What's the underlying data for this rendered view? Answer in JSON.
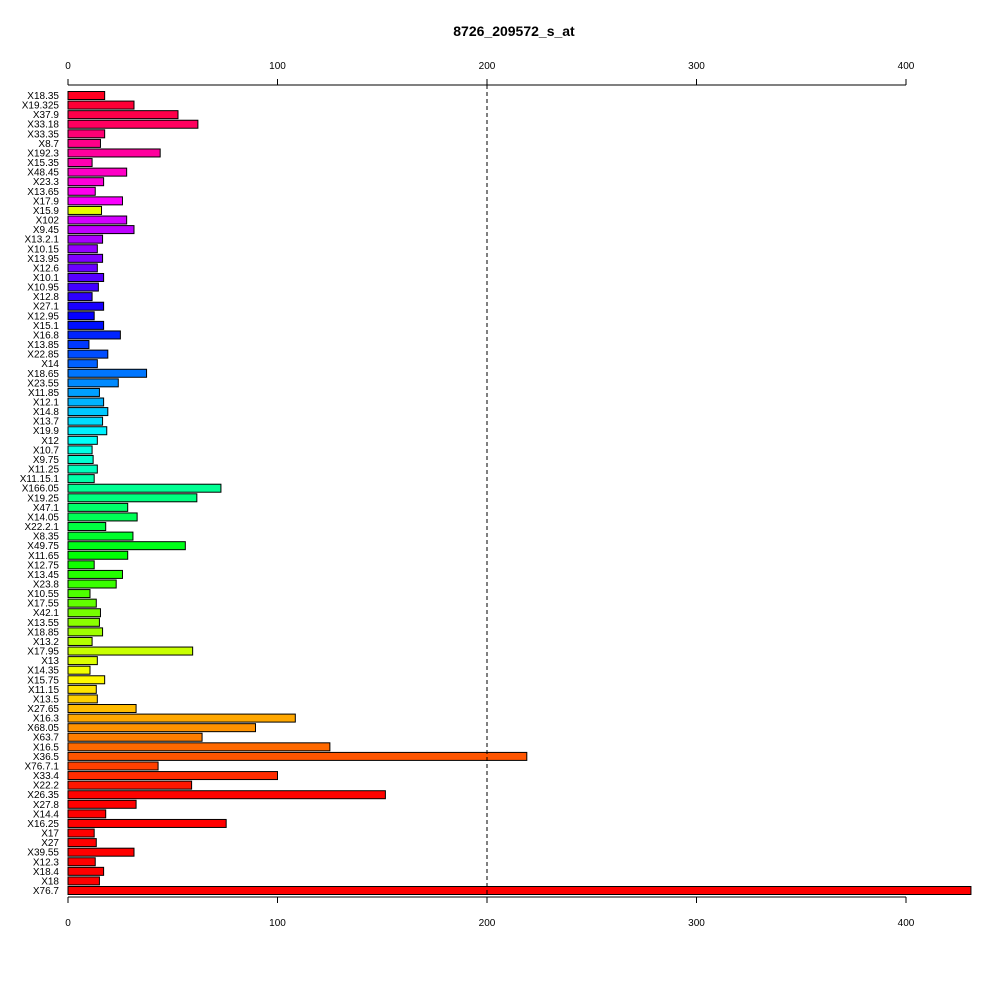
{
  "chart_data": {
    "type": "bar",
    "orientation": "horizontal",
    "title": "8726_209572_s_at",
    "xlabel": "",
    "ylabel": "",
    "xlim": [
      0,
      430
    ],
    "x_ticks": [
      0,
      100,
      200,
      300,
      400
    ],
    "reference_line": 200,
    "grid": false,
    "axes": [
      "top",
      "bottom"
    ],
    "categories": [
      "X18.35",
      "X19.325",
      "X37.9",
      "X33.18",
      "X33.35",
      "X8.7",
      "X192.3",
      "X15.35",
      "X48.45",
      "X23.3",
      "X13.65",
      "X17.9",
      "X15.9",
      "X102",
      "X9.45",
      "X13.2.1",
      "X10.15",
      "X13.95",
      "X12.6",
      "X10.1",
      "X10.95",
      "X12.8",
      "X27.1",
      "X12.95",
      "X15.1",
      "X16.8",
      "X13.85",
      "X22.85",
      "X14",
      "X18.65",
      "X23.55",
      "X11.85",
      "X12.1",
      "X14.8",
      "X13.7",
      "X19.9",
      "X12",
      "X10.7",
      "X9.75",
      "X11.25",
      "X11.15.1",
      "X166.05",
      "X19.25",
      "X47.1",
      "X14.05",
      "X22.2.1",
      "X8.35",
      "X49.75",
      "X11.65",
      "X12.75",
      "X13.45",
      "X23.8",
      "X10.55",
      "X17.55",
      "X42.1",
      "X13.55",
      "X18.85",
      "X13.2",
      "X17.95",
      "X13",
      "X14.35",
      "X15.75",
      "X11.15",
      "X13.5",
      "X27.65",
      "X16.3",
      "X68.05",
      "X63.7",
      "X16.5",
      "X36.5",
      "X76.7.1",
      "X33.4",
      "X22.2",
      "X26.35",
      "X27.8",
      "X14.4",
      "X16.25",
      "X17",
      "X27",
      "X39.55",
      "X12.3",
      "X18.4",
      "X18",
      "X76.7"
    ],
    "values": [
      17.5,
      31.5,
      52.5,
      62,
      17.5,
      15.5,
      44,
      11.5,
      28,
      17,
      13,
      26,
      16,
      28,
      31.5,
      16.5,
      14,
      16.5,
      14,
      17,
      14.5,
      11.5,
      17,
      12.5,
      17,
      25,
      10,
      19,
      14,
      37.5,
      24,
      15,
      17,
      19,
      16.5,
      18.5,
      14,
      11.5,
      12,
      14,
      12.5,
      73,
      61.5,
      28.5,
      33,
      18,
      31,
      56,
      28.5,
      12.5,
      26,
      23,
      10.5,
      13.5,
      15.5,
      15,
      16.5,
      11.5,
      59.5,
      14,
      10.5,
      17.5,
      13.5,
      14,
      32.5,
      108.5,
      89.5,
      64,
      125,
      219,
      43,
      100,
      59,
      151.5,
      32.5,
      18,
      75.5,
      12.5,
      13.5,
      31.5,
      13,
      17,
      15,
      431
    ],
    "colors": [
      "#ff0021",
      "#ff0036",
      "#ff004a",
      "#ff005f",
      "#ff0074",
      "#ff0088",
      "#ff009d",
      "#ff00b1",
      "#ff00c6",
      "#ff00da",
      "#ff00ef",
      "#fb00ff",
      "#e7ff00",
      "#d200ff",
      "#be00ff",
      "#a900ff",
      "#9400ff",
      "#8000ff",
      "#6b00ff",
      "#5700ff",
      "#4200ff",
      "#2e00ff",
      "#1900ff",
      "#0500ff",
      "#000fff",
      "#0024ff",
      "#0038ff",
      "#004dff",
      "#0061ff",
      "#0076ff",
      "#008aff",
      "#009fff",
      "#00b3ff",
      "#00c8ff",
      "#00dcff",
      "#00f1ff",
      "#00fffa",
      "#00ffe5",
      "#00ffd1",
      "#00ffbc",
      "#00ffa8",
      "#00ff93",
      "#00ff7f",
      "#00ff6a",
      "#00ff56",
      "#00ff41",
      "#00ff2c",
      "#00ff18",
      "#00ff04",
      "#10ff00",
      "#24ff00",
      "#39ff00",
      "#4dff00",
      "#62ff00",
      "#76ff00",
      "#8bff00",
      "#9fff00",
      "#b4ff00",
      "#c8ff00",
      "#ddff00",
      "#f1ff00",
      "#fff900",
      "#ffe400",
      "#ffd000",
      "#ffbb00",
      "#ffa700",
      "#ff9200",
      "#ff7e00",
      "#ff6900",
      "#ff5500",
      "#ff4000",
      "#ff2c00",
      "#ff1700",
      "#ff0300",
      "#ff0000",
      "#ff0000",
      "#ff0000",
      "#ff0000",
      "#ff0000",
      "#ff0000",
      "#ff0000",
      "#ff0000",
      "#ff0000",
      "#ff0000"
    ]
  }
}
